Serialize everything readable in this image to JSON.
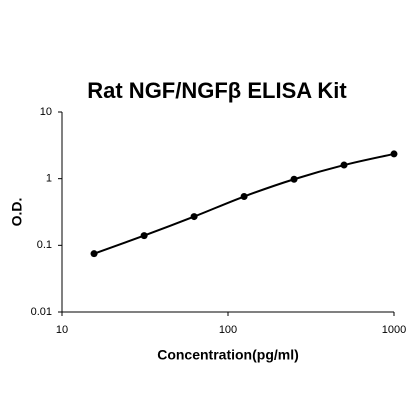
{
  "chart_data": {
    "type": "line",
    "title": "Rat NGF/NGFβ ELISA Kit",
    "x_label": "Concentration(pg/ml)",
    "y_label": "O.D.",
    "x": [
      15.6,
      31.25,
      62.5,
      125,
      250,
      500,
      1000
    ],
    "series": [
      {
        "color": "#000000",
        "values": [
          0.075,
          0.14,
          0.27,
          0.54,
          0.98,
          1.6,
          2.35
        ]
      }
    ],
    "xlim": [
      10,
      1000
    ],
    "ylim": [
      0.01,
      10
    ],
    "xticks": [
      10,
      100,
      1000
    ],
    "yticks": [
      0.01,
      0.1,
      1,
      10
    ],
    "xscale": "log",
    "yscale": "log",
    "grid": false,
    "markers": true
  }
}
